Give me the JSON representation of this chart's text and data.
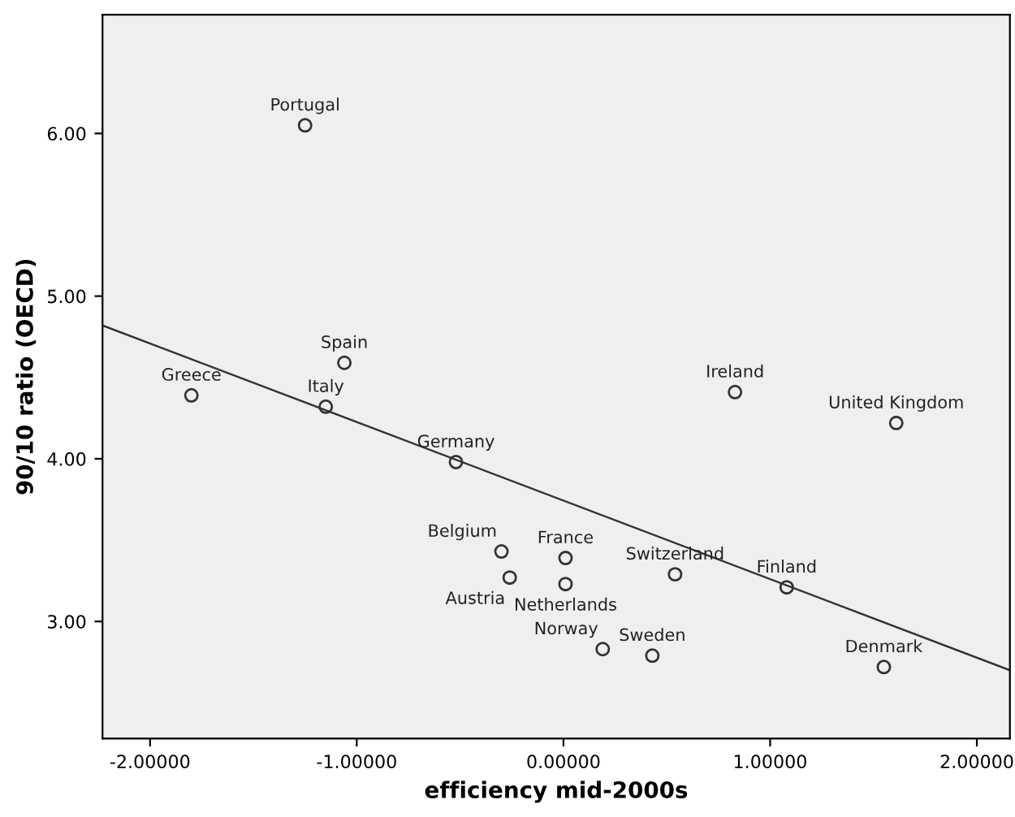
{
  "chart_data": {
    "type": "scatter",
    "xlabel": "efficiency mid-2000s",
    "ylabel": "90/10 ratio (OECD)",
    "xlim": [
      -2.23,
      2.16
    ],
    "ylim": [
      2.28,
      6.73
    ],
    "xticks": [
      {
        "value": -2,
        "label": "-2.00000"
      },
      {
        "value": -1,
        "label": "-1.00000"
      },
      {
        "value": 0,
        "label": "0.00000"
      },
      {
        "value": 1,
        "label": "1.00000"
      },
      {
        "value": 2,
        "label": "2.00000"
      }
    ],
    "yticks": [
      {
        "value": 3,
        "label": "3.00"
      },
      {
        "value": 4,
        "label": "4.00"
      },
      {
        "value": 5,
        "label": "5.00"
      },
      {
        "value": 6,
        "label": "6.00"
      }
    ],
    "grid": false,
    "series": [
      {
        "marker": "circle",
        "color": "#333333",
        "x": [
          -1.25,
          -1.06,
          -1.8,
          0.83,
          -1.15,
          1.61,
          -0.52,
          -0.3,
          0.01,
          -0.26,
          0.01,
          0.54,
          1.08,
          0.19,
          0.43,
          1.55
        ],
        "values": [
          6.05,
          4.59,
          4.39,
          4.41,
          4.32,
          4.22,
          3.98,
          3.43,
          3.39,
          3.27,
          3.23,
          3.29,
          3.21,
          2.83,
          2.79,
          2.72
        ]
      },
      {
        "type": "line",
        "marker": "none",
        "color": "#333333",
        "x": [
          -2.23,
          2.16
        ],
        "values": [
          4.82,
          2.7
        ]
      }
    ],
    "annotations": [
      {
        "text": "Portugal",
        "x": -1.25,
        "y": 6.05
      },
      {
        "text": "Spain",
        "x": -1.06,
        "y": 4.59
      },
      {
        "text": "Greece",
        "x": -1.8,
        "y": 4.39
      },
      {
        "text": "Ireland",
        "x": 0.83,
        "y": 4.41
      },
      {
        "text": "Italy",
        "x": -1.15,
        "y": 4.32
      },
      {
        "text": "United Kingdom",
        "x": 1.61,
        "y": 4.22
      },
      {
        "text": "Germany",
        "x": -0.52,
        "y": 3.98
      },
      {
        "text": "Belgium",
        "x": -0.3,
        "y": 3.43
      },
      {
        "text": "France",
        "x": 0.01,
        "y": 3.39
      },
      {
        "text": "Austria",
        "x": -0.26,
        "y": 3.27
      },
      {
        "text": "Netherlands",
        "x": 0.01,
        "y": 3.23
      },
      {
        "text": "Switzerland",
        "x": 0.54,
        "y": 3.29
      },
      {
        "text": "Finland",
        "x": 1.08,
        "y": 3.21
      },
      {
        "text": "Norway",
        "x": 0.19,
        "y": 2.83
      },
      {
        "text": "Sweden",
        "x": 0.43,
        "y": 2.79
      },
      {
        "text": "Denmark",
        "x": 1.55,
        "y": 2.72
      }
    ]
  }
}
